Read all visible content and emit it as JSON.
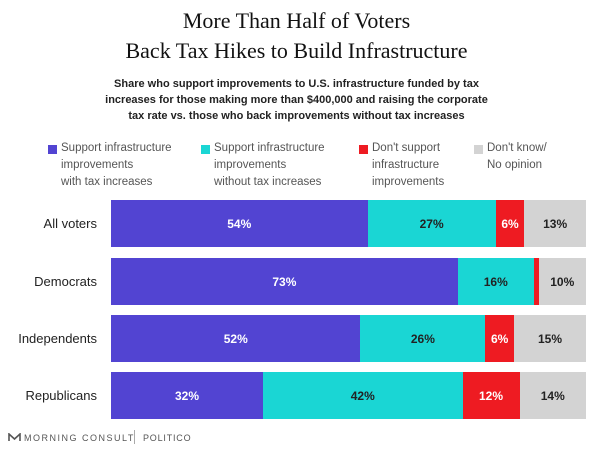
{
  "header": {
    "title_line1": "More Than Half of Voters",
    "title_line2": "Back Tax Hikes to Build Infrastructure",
    "subtitle_line1": "Share who support improvements to U.S. infrastructure funded by tax",
    "subtitle_line2": "increases for those making more than $400,000 and raising the corporate",
    "subtitle_line3": "tax rate vs. those who back improvements without tax increases"
  },
  "legend": [
    {
      "lines": [
        "Support infrastructure",
        "improvements",
        "with tax increases"
      ],
      "color": "#5244d2"
    },
    {
      "lines": [
        "Support infrastructure",
        "improvements",
        "without tax increases"
      ],
      "color": "#1ad6d4"
    },
    {
      "lines": [
        "Don't support",
        "infrastructure",
        "improvements"
      ],
      "color": "#ee1b22"
    },
    {
      "lines": [
        "Don't know/",
        "No opinion"
      ],
      "color": "#d3d3d3"
    }
  ],
  "chart_data": {
    "type": "bar",
    "orientation": "horizontal",
    "stacked": true,
    "categories": [
      "All voters",
      "Democrats",
      "Independents",
      "Republicans"
    ],
    "series": [
      {
        "name": "Support infrastructure improvements with tax increases",
        "values": [
          54,
          73,
          52,
          32
        ],
        "color": "#5244d2"
      },
      {
        "name": "Support infrastructure improvements without tax increases",
        "values": [
          27,
          16,
          26,
          42
        ],
        "color": "#1ad6d4"
      },
      {
        "name": "Don't support infrastructure improvements",
        "values": [
          6,
          1,
          6,
          12
        ],
        "color": "#ee1b22"
      },
      {
        "name": "Don't know/ No opinion",
        "values": [
          13,
          10,
          15,
          14
        ],
        "color": "#d3d3d3"
      }
    ],
    "data_labels": [
      [
        "54%",
        "27%",
        "6%",
        "13%"
      ],
      [
        "73%",
        "16%",
        "",
        "10%"
      ],
      [
        "52%",
        "26%",
        "6%",
        "15%"
      ],
      [
        "32%",
        "42%",
        "12%",
        "14%"
      ]
    ],
    "xlim": [
      0,
      100
    ],
    "grid": false,
    "legend_position": "top"
  },
  "footer": {
    "brand": "MORNING CONSULT",
    "partner": "POLITICO"
  }
}
